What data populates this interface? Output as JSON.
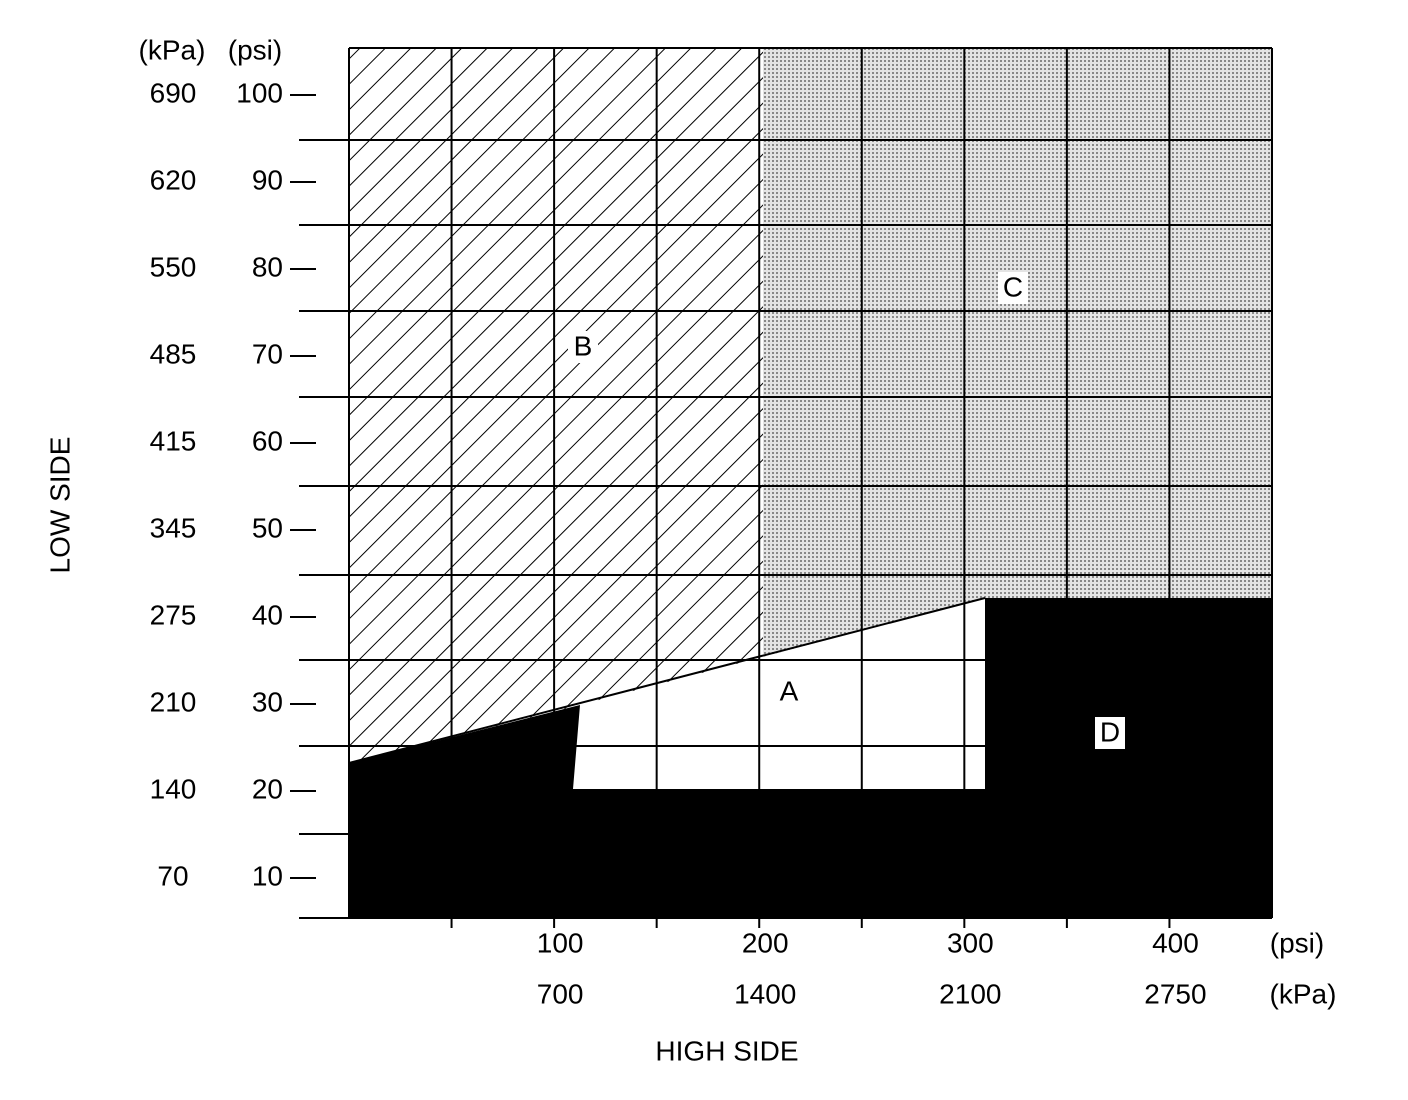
{
  "low_side": {
    "title": "LOW SIDE",
    "units": [
      "(kPa)",
      "(psi)"
    ],
    "ticks": [
      {
        "kpa": 690,
        "psi": 100
      },
      {
        "kpa": 620,
        "psi": 90
      },
      {
        "kpa": 550,
        "psi": 80
      },
      {
        "kpa": 485,
        "psi": 70
      },
      {
        "kpa": 415,
        "psi": 60
      },
      {
        "kpa": 345,
        "psi": 50
      },
      {
        "kpa": 275,
        "psi": 40
      },
      {
        "kpa": 210,
        "psi": 30
      },
      {
        "kpa": 140,
        "psi": 20
      },
      {
        "kpa": 70,
        "psi": 10
      }
    ]
  },
  "high_side": {
    "title": "HIGH SIDE",
    "units": [
      "(psi)",
      "(kPa)"
    ],
    "ticks": [
      {
        "psi": 100,
        "kpa": 700
      },
      {
        "psi": 200,
        "kpa": 1400
      },
      {
        "psi": 300,
        "kpa": 2100
      },
      {
        "psi": 400,
        "kpa": 2750
      }
    ]
  },
  "regions": [
    "A",
    "B",
    "C",
    "D"
  ]
}
